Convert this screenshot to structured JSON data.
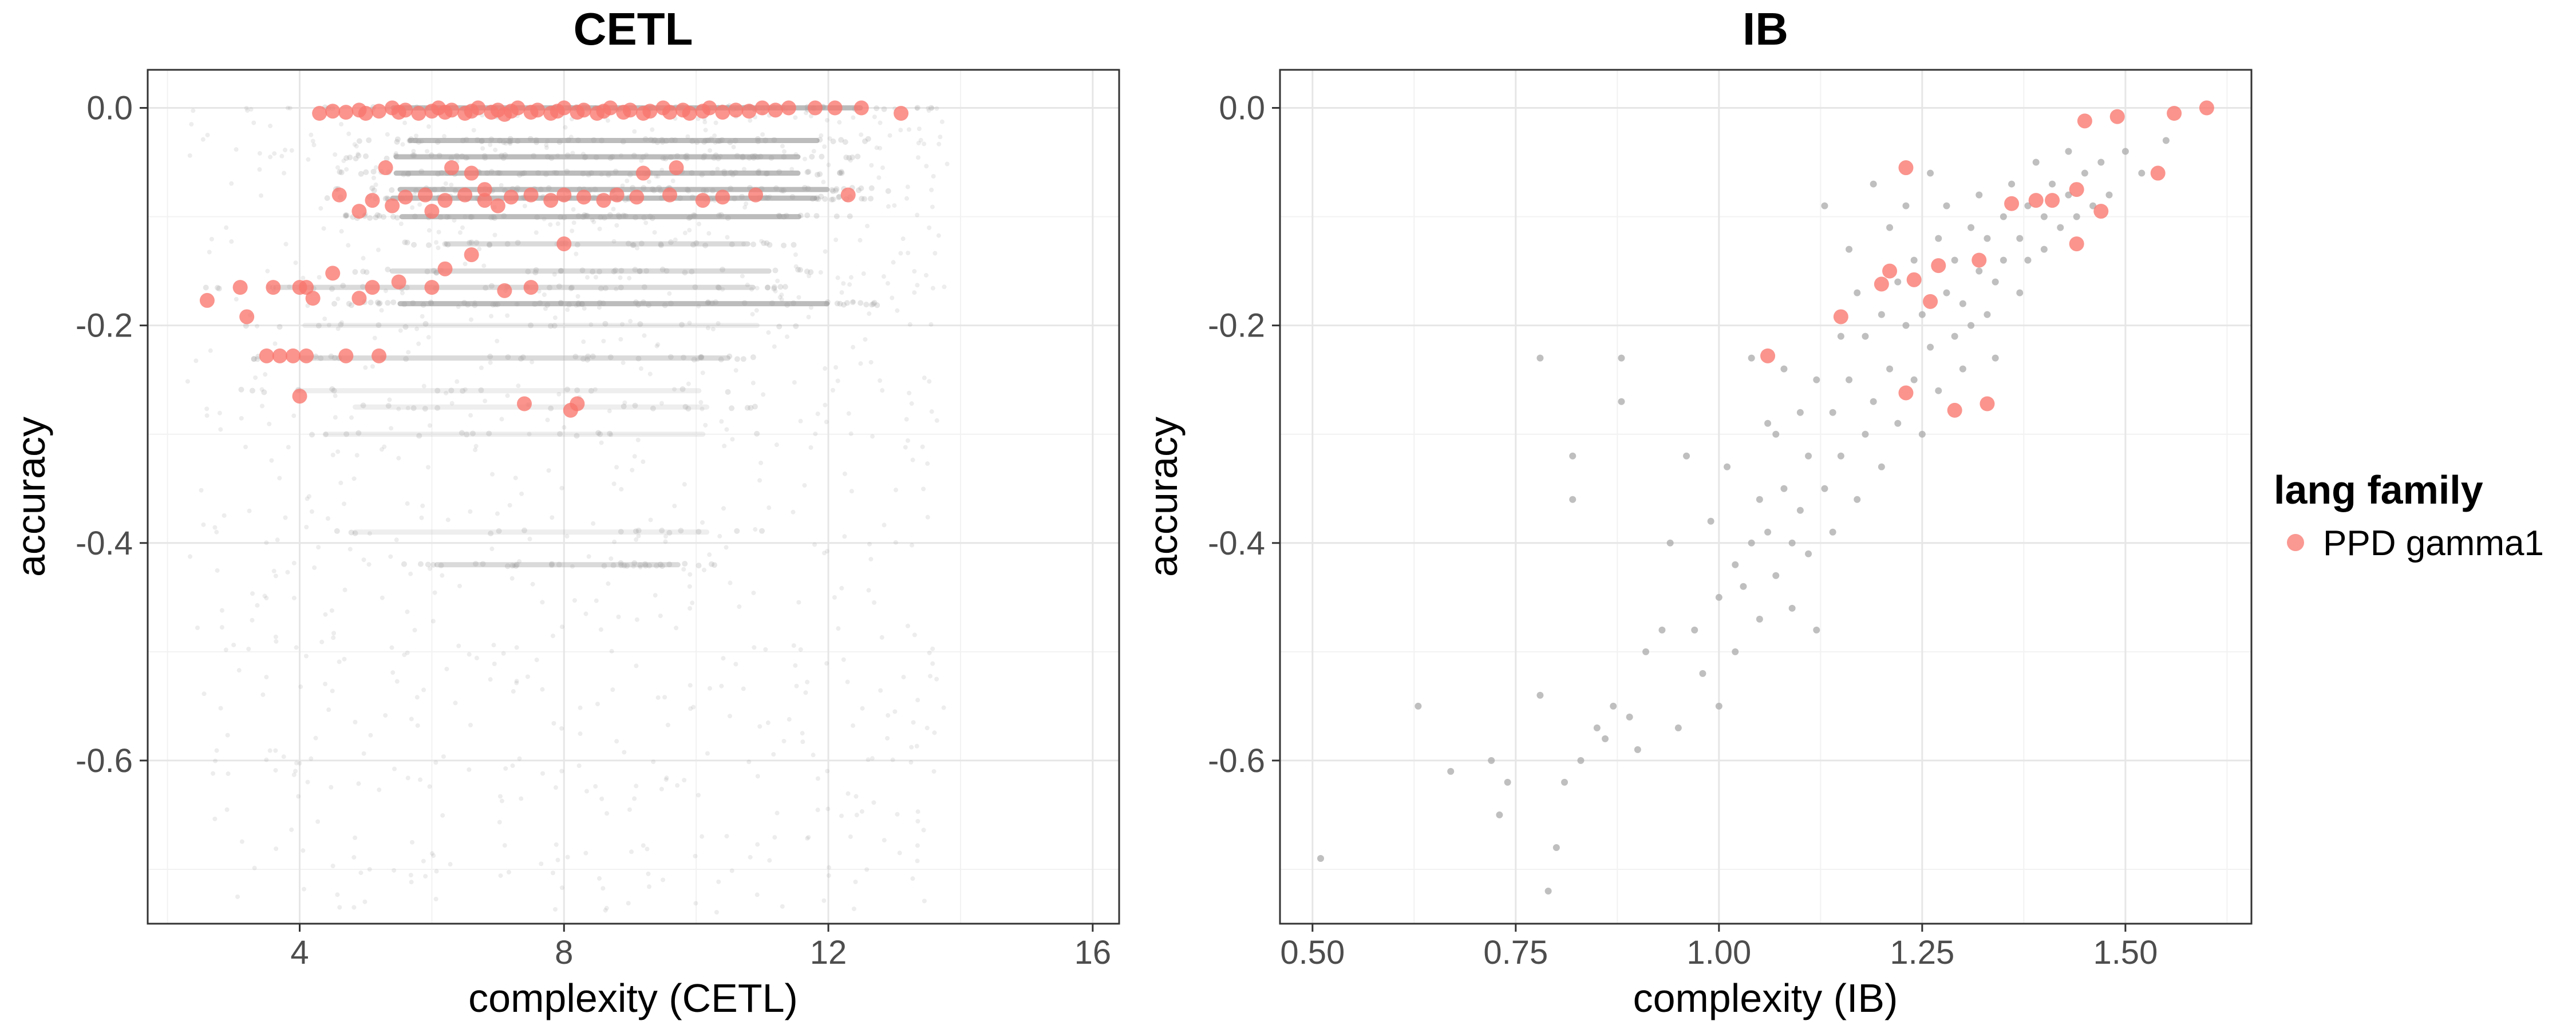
{
  "chart_data": [
    {
      "type": "scatter",
      "title": "CETL",
      "xlabel": "complexity (CETL)",
      "ylabel": "accuracy",
      "xlim": [
        1.7,
        16.4
      ],
      "ylim": [
        -0.75,
        0.035
      ],
      "xticks": [
        4,
        8,
        12,
        16
      ],
      "xtick_labels": [
        "4",
        "8",
        "12",
        "16"
      ],
      "yticks": [
        0.0,
        -0.2,
        -0.4,
        -0.6
      ],
      "ytick_labels": [
        "0.0",
        "-0.2",
        "-0.4",
        "-0.6"
      ],
      "grid": true,
      "background_bands": [
        {
          "y": -0.0,
          "xmin": 4.3,
          "xmax": 13.6,
          "density": "dense"
        },
        {
          "y": -0.03,
          "xmin": 4.7,
          "xmax": 12.8,
          "density": "dense"
        },
        {
          "y": -0.045,
          "xmin": 4.5,
          "xmax": 12.5,
          "density": "dense"
        },
        {
          "y": -0.06,
          "xmin": 4.5,
          "xmax": 12.5,
          "density": "dense"
        },
        {
          "y": -0.075,
          "xmin": 4.5,
          "xmax": 13.0,
          "density": "dense"
        },
        {
          "y": -0.083,
          "xmin": 4.4,
          "xmax": 12.8,
          "density": "dense"
        },
        {
          "y": -0.1,
          "xmin": 4.6,
          "xmax": 12.5,
          "density": "dense"
        },
        {
          "y": -0.125,
          "xmin": 5.5,
          "xmax": 11.5,
          "density": "medium"
        },
        {
          "y": -0.15,
          "xmin": 4.5,
          "xmax": 12.0,
          "density": "medium"
        },
        {
          "y": -0.165,
          "xmin": 2.5,
          "xmax": 12.0,
          "density": "medium"
        },
        {
          "y": -0.18,
          "xmin": 4.5,
          "xmax": 13.0,
          "density": "dense"
        },
        {
          "y": -0.2,
          "xmin": 3.0,
          "xmax": 12.0,
          "density": "sparse"
        },
        {
          "y": -0.23,
          "xmin": 3.0,
          "xmax": 11.5,
          "density": "medium"
        },
        {
          "y": -0.26,
          "xmin": 3.0,
          "xmax": 11.0,
          "density": "sparse"
        },
        {
          "y": -0.275,
          "xmin": 4.0,
          "xmax": 11.0,
          "density": "sparse"
        },
        {
          "y": -0.3,
          "xmin": 3.5,
          "xmax": 11.0,
          "density": "sparse"
        },
        {
          "y": -0.39,
          "xmin": 4.0,
          "xmax": 11.0,
          "density": "sparse"
        },
        {
          "y": -0.42,
          "xmin": 5.5,
          "xmax": 10.3,
          "density": "medium"
        }
      ],
      "series": [
        {
          "name": "PPD gamma1",
          "color": "#F8766D",
          "points": [
            [
              4.3,
              -0.005
            ],
            [
              4.5,
              -0.003
            ],
            [
              4.7,
              -0.004
            ],
            [
              4.9,
              -0.002
            ],
            [
              5.0,
              -0.005
            ],
            [
              5.2,
              -0.003
            ],
            [
              5.4,
              0.0
            ],
            [
              5.5,
              -0.004
            ],
            [
              5.6,
              -0.002
            ],
            [
              5.8,
              -0.005
            ],
            [
              6.0,
              -0.003
            ],
            [
              6.1,
              0.0
            ],
            [
              6.2,
              -0.004
            ],
            [
              6.3,
              -0.002
            ],
            [
              6.5,
              -0.005
            ],
            [
              6.6,
              -0.003
            ],
            [
              6.7,
              0.0
            ],
            [
              6.9,
              -0.004
            ],
            [
              7.0,
              -0.002
            ],
            [
              7.1,
              -0.006
            ],
            [
              7.2,
              -0.003
            ],
            [
              7.3,
              0.0
            ],
            [
              7.5,
              -0.004
            ],
            [
              7.6,
              -0.002
            ],
            [
              7.8,
              -0.005
            ],
            [
              7.9,
              -0.003
            ],
            [
              8.0,
              0.0
            ],
            [
              8.2,
              -0.004
            ],
            [
              8.3,
              -0.002
            ],
            [
              8.5,
              -0.005
            ],
            [
              8.6,
              -0.003
            ],
            [
              8.7,
              0.0
            ],
            [
              8.9,
              -0.004
            ],
            [
              9.0,
              -0.002
            ],
            [
              9.2,
              -0.005
            ],
            [
              9.3,
              -0.003
            ],
            [
              9.5,
              0.0
            ],
            [
              9.6,
              -0.004
            ],
            [
              9.8,
              -0.002
            ],
            [
              9.9,
              -0.005
            ],
            [
              10.1,
              -0.003
            ],
            [
              10.2,
              0.0
            ],
            [
              10.4,
              -0.004
            ],
            [
              10.6,
              -0.002
            ],
            [
              10.8,
              -0.003
            ],
            [
              11.0,
              0.0
            ],
            [
              11.2,
              -0.002
            ],
            [
              11.4,
              0.0
            ],
            [
              11.8,
              0.0
            ],
            [
              12.1,
              0.0
            ],
            [
              12.5,
              0.0
            ],
            [
              13.1,
              -0.005
            ],
            [
              5.3,
              -0.055
            ],
            [
              6.3,
              -0.055
            ],
            [
              6.6,
              -0.06
            ],
            [
              9.2,
              -0.06
            ],
            [
              9.7,
              -0.055
            ],
            [
              4.6,
              -0.08
            ],
            [
              4.9,
              -0.095
            ],
            [
              5.1,
              -0.085
            ],
            [
              5.4,
              -0.09
            ],
            [
              5.6,
              -0.082
            ],
            [
              5.9,
              -0.08
            ],
            [
              6.2,
              -0.085
            ],
            [
              6.5,
              -0.08
            ],
            [
              6.8,
              -0.085
            ],
            [
              7.0,
              -0.09
            ],
            [
              7.2,
              -0.082
            ],
            [
              7.5,
              -0.08
            ],
            [
              7.8,
              -0.085
            ],
            [
              8.0,
              -0.08
            ],
            [
              8.3,
              -0.082
            ],
            [
              8.6,
              -0.085
            ],
            [
              8.8,
              -0.08
            ],
            [
              9.1,
              -0.082
            ],
            [
              9.6,
              -0.08
            ],
            [
              10.1,
              -0.085
            ],
            [
              10.4,
              -0.082
            ],
            [
              10.9,
              -0.08
            ],
            [
              12.3,
              -0.08
            ],
            [
              6.8,
              -0.075
            ],
            [
              6.0,
              -0.095
            ],
            [
              8.0,
              -0.125
            ],
            [
              6.6,
              -0.135
            ],
            [
              6.2,
              -0.148
            ],
            [
              4.5,
              -0.152
            ],
            [
              3.1,
              -0.165
            ],
            [
              3.6,
              -0.165
            ],
            [
              4.0,
              -0.165
            ],
            [
              4.1,
              -0.165
            ],
            [
              5.1,
              -0.165
            ],
            [
              5.5,
              -0.16
            ],
            [
              6.0,
              -0.165
            ],
            [
              7.1,
              -0.168
            ],
            [
              7.5,
              -0.165
            ],
            [
              4.2,
              -0.175
            ],
            [
              4.9,
              -0.175
            ],
            [
              2.6,
              -0.177
            ],
            [
              3.2,
              -0.192
            ],
            [
              3.5,
              -0.228
            ],
            [
              3.9,
              -0.228
            ],
            [
              4.1,
              -0.228
            ],
            [
              4.7,
              -0.228
            ],
            [
              5.2,
              -0.228
            ],
            [
              3.7,
              -0.228
            ],
            [
              4.0,
              -0.265
            ],
            [
              7.4,
              -0.272
            ],
            [
              8.1,
              -0.278
            ],
            [
              8.2,
              -0.272
            ]
          ]
        }
      ]
    },
    {
      "type": "scatter",
      "title": "IB",
      "xlabel": "complexity (IB)",
      "ylabel": "accuracy",
      "xlim": [
        0.46,
        1.655
      ],
      "ylim": [
        -0.75,
        0.035
      ],
      "xticks": [
        0.5,
        0.75,
        1.0,
        1.25,
        1.5
      ],
      "xtick_labels": [
        "0.50",
        "0.75",
        "1.00",
        "1.25",
        "1.50"
      ],
      "yticks": [
        0.0,
        -0.2,
        -0.4,
        -0.6
      ],
      "ytick_labels": [
        "0.0",
        "-0.2",
        "-0.4",
        "-0.6"
      ],
      "grid": true,
      "background_points": [
        [
          0.51,
          -0.69
        ],
        [
          0.63,
          -0.55
        ],
        [
          0.67,
          -0.61
        ],
        [
          0.72,
          -0.6
        ],
        [
          0.73,
          -0.65
        ],
        [
          0.74,
          -0.62
        ],
        [
          0.78,
          -0.54
        ],
        [
          0.78,
          -0.23
        ],
        [
          0.79,
          -0.72
        ],
        [
          0.8,
          -0.68
        ],
        [
          0.81,
          -0.62
        ],
        [
          0.82,
          -0.32
        ],
        [
          0.82,
          -0.36
        ],
        [
          0.83,
          -0.6
        ],
        [
          0.85,
          -0.57
        ],
        [
          0.86,
          -0.58
        ],
        [
          0.87,
          -0.55
        ],
        [
          0.88,
          -0.23
        ],
        [
          0.88,
          -0.27
        ],
        [
          0.89,
          -0.56
        ],
        [
          0.9,
          -0.59
        ],
        [
          0.91,
          -0.5
        ],
        [
          0.93,
          -0.48
        ],
        [
          0.94,
          -0.4
        ],
        [
          0.95,
          -0.57
        ],
        [
          0.96,
          -0.32
        ],
        [
          0.97,
          -0.48
        ],
        [
          0.98,
          -0.52
        ],
        [
          0.99,
          -0.38
        ],
        [
          1.0,
          -0.45
        ],
        [
          1.0,
          -0.55
        ],
        [
          1.01,
          -0.33
        ],
        [
          1.02,
          -0.42
        ],
        [
          1.02,
          -0.5
        ],
        [
          1.03,
          -0.44
        ],
        [
          1.04,
          -0.4
        ],
        [
          1.04,
          -0.23
        ],
        [
          1.05,
          -0.36
        ],
        [
          1.05,
          -0.47
        ],
        [
          1.06,
          -0.29
        ],
        [
          1.06,
          -0.39
        ],
        [
          1.07,
          -0.43
        ],
        [
          1.07,
          -0.3
        ],
        [
          1.08,
          -0.24
        ],
        [
          1.08,
          -0.35
        ],
        [
          1.09,
          -0.4
        ],
        [
          1.09,
          -0.46
        ],
        [
          1.1,
          -0.28
        ],
        [
          1.1,
          -0.37
        ],
        [
          1.11,
          -0.41
        ],
        [
          1.11,
          -0.32
        ],
        [
          1.12,
          -0.25
        ],
        [
          1.12,
          -0.48
        ],
        [
          1.13,
          -0.09
        ],
        [
          1.13,
          -0.35
        ],
        [
          1.14,
          -0.28
        ],
        [
          1.14,
          -0.39
        ],
        [
          1.15,
          -0.21
        ],
        [
          1.15,
          -0.32
        ],
        [
          1.16,
          -0.13
        ],
        [
          1.16,
          -0.25
        ],
        [
          1.17,
          -0.36
        ],
        [
          1.17,
          -0.17
        ],
        [
          1.18,
          -0.3
        ],
        [
          1.18,
          -0.21
        ],
        [
          1.19,
          -0.07
        ],
        [
          1.19,
          -0.27
        ],
        [
          1.2,
          -0.19
        ],
        [
          1.2,
          -0.33
        ],
        [
          1.21,
          -0.11
        ],
        [
          1.21,
          -0.24
        ],
        [
          1.22,
          -0.16
        ],
        [
          1.22,
          -0.29
        ],
        [
          1.23,
          -0.2
        ],
        [
          1.23,
          -0.09
        ],
        [
          1.24,
          -0.25
        ],
        [
          1.24,
          -0.14
        ],
        [
          1.25,
          -0.19
        ],
        [
          1.25,
          -0.3
        ],
        [
          1.26,
          -0.06
        ],
        [
          1.26,
          -0.22
        ],
        [
          1.27,
          -0.12
        ],
        [
          1.27,
          -0.26
        ],
        [
          1.28,
          -0.17
        ],
        [
          1.28,
          -0.09
        ],
        [
          1.29,
          -0.21
        ],
        [
          1.29,
          -0.14
        ],
        [
          1.3,
          -0.18
        ],
        [
          1.3,
          -0.24
        ],
        [
          1.31,
          -0.11
        ],
        [
          1.31,
          -0.2
        ],
        [
          1.32,
          -0.15
        ],
        [
          1.32,
          -0.08
        ],
        [
          1.33,
          -0.19
        ],
        [
          1.33,
          -0.12
        ],
        [
          1.34,
          -0.16
        ],
        [
          1.34,
          -0.23
        ],
        [
          1.35,
          -0.1
        ],
        [
          1.35,
          -0.14
        ],
        [
          1.36,
          -0.07
        ],
        [
          1.37,
          -0.12
        ],
        [
          1.37,
          -0.17
        ],
        [
          1.38,
          -0.09
        ],
        [
          1.38,
          -0.14
        ],
        [
          1.39,
          -0.05
        ],
        [
          1.4,
          -0.1
        ],
        [
          1.4,
          -0.13
        ],
        [
          1.41,
          -0.07
        ],
        [
          1.42,
          -0.11
        ],
        [
          1.43,
          -0.04
        ],
        [
          1.43,
          -0.08
        ],
        [
          1.44,
          -0.1
        ],
        [
          1.45,
          -0.06
        ],
        [
          1.46,
          -0.09
        ],
        [
          1.47,
          -0.05
        ],
        [
          1.48,
          -0.08
        ],
        [
          1.5,
          -0.04
        ],
        [
          1.52,
          -0.06
        ],
        [
          1.55,
          -0.03
        ]
      ],
      "series": [
        {
          "name": "PPD gamma1",
          "color": "#F8766D",
          "points": [
            [
              1.6,
              0.0
            ],
            [
              1.56,
              -0.005
            ],
            [
              1.49,
              -0.008
            ],
            [
              1.45,
              -0.012
            ],
            [
              1.54,
              -0.06
            ],
            [
              1.23,
              -0.055
            ],
            [
              1.36,
              -0.088
            ],
            [
              1.39,
              -0.085
            ],
            [
              1.41,
              -0.085
            ],
            [
              1.44,
              -0.075
            ],
            [
              1.47,
              -0.095
            ],
            [
              1.44,
              -0.125
            ],
            [
              1.32,
              -0.14
            ],
            [
              1.27,
              -0.145
            ],
            [
              1.21,
              -0.15
            ],
            [
              1.24,
              -0.158
            ],
            [
              1.2,
              -0.162
            ],
            [
              1.26,
              -0.178
            ],
            [
              1.15,
              -0.192
            ],
            [
              1.06,
              -0.228
            ],
            [
              1.23,
              -0.262
            ],
            [
              1.29,
              -0.278
            ],
            [
              1.33,
              -0.272
            ]
          ]
        }
      ]
    }
  ],
  "legend": {
    "title": "lang family",
    "items": [
      {
        "label": "PPD gamma1",
        "color": "#F8766D"
      }
    ]
  }
}
